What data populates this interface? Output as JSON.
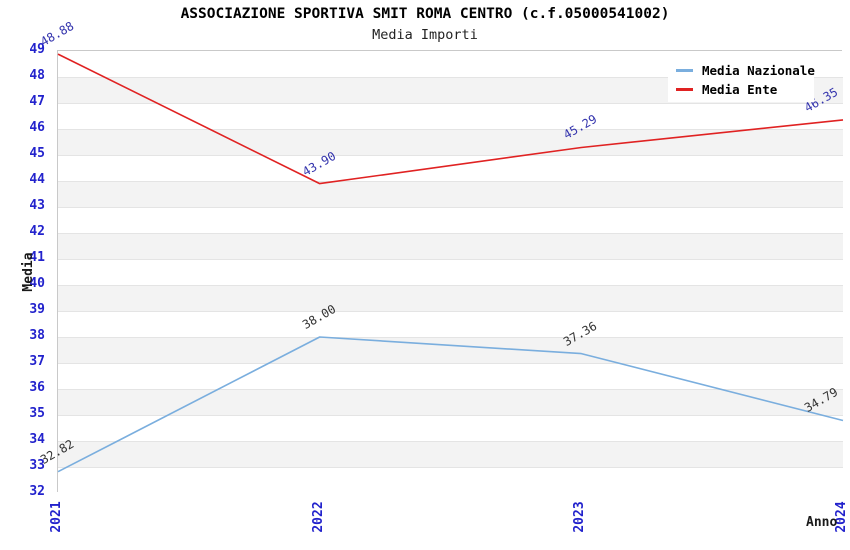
{
  "title": "ASSOCIAZIONE SPORTIVA SMIT ROMA CENTRO (c.f.05000541002)",
  "subtitle": "Media Importi",
  "chart_data": {
    "type": "line",
    "categories": [
      "2021",
      "2022",
      "2023",
      "2024"
    ],
    "series": [
      {
        "name": "Media Nazionale",
        "color": "#7aaede",
        "label_color": "#333333",
        "values": [
          32.82,
          38.0,
          37.36,
          34.79
        ],
        "point_labels": [
          "32.82",
          "38.00",
          "37.36",
          "34.79"
        ]
      },
      {
        "name": "Media Ente",
        "color": "#e02222",
        "label_color": "#3434ad",
        "values": [
          48.88,
          43.9,
          45.29,
          46.35
        ],
        "point_labels": [
          "48.88",
          "43.90",
          "45.29",
          "46.35"
        ]
      }
    ],
    "xlabel": "Anno",
    "ylabel": "Media",
    "ylim": [
      32,
      49
    ],
    "ytick_step": 1,
    "grid": true,
    "legend_position": "top-right"
  },
  "style": {
    "tick_color": "#2222cc",
    "band_color": "#f3f3f3",
    "grid_color": "#e4e4e4",
    "border_color": "#c9c9c9"
  }
}
